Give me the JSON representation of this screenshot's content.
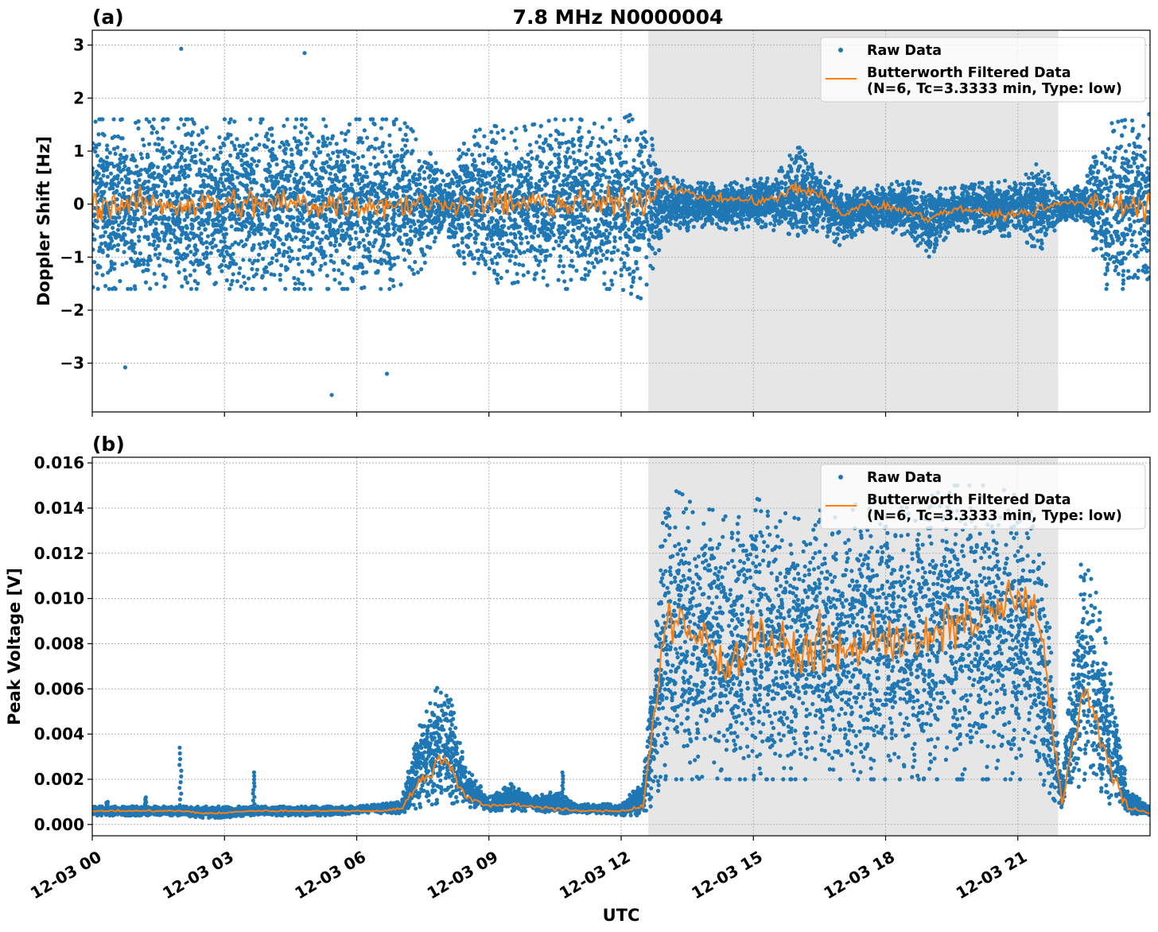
{
  "chart_data": [
    {
      "type": "scatter",
      "panel_label": "(a)",
      "title": "7.8 MHz N0000004",
      "xlabel": "",
      "ylabel": "Doppler Shift [Hz]",
      "ylim": [
        -3.92,
        3.28
      ],
      "xlim": [
        "12-03 00:00",
        "12-04 00:00"
      ],
      "yticks": [
        "−3",
        "−2",
        "−1",
        "0",
        "1",
        "2",
        "3"
      ],
      "ytick_values": [
        -3,
        -2,
        -1,
        0,
        1,
        2,
        3
      ],
      "grid": true,
      "legend_position": "top-right",
      "shaded_interval": [
        "12-03 12:37",
        "12-03 21:55"
      ],
      "shade_color": "#e6e6e6",
      "raw_color": "#1f77b4",
      "filtered_color": "#ff7f0e",
      "legend": [
        "Raw Data",
        "Butterworth Filtered Data",
        "(N=6, Tc=3.3333 min, Type: low)"
      ],
      "time_step_minutes": 30,
      "raw_low": [
        -1.6,
        -1.6,
        -1.6,
        -1.6,
        -1.6,
        -1.6,
        -1.6,
        -1.6,
        -1.6,
        -1.6,
        -1.6,
        -1.6,
        -1.6,
        -1.6,
        -1.6,
        -1.2,
        -0.5,
        -1.2,
        -1.5,
        -1.5,
        -1.4,
        -1.6,
        -1.6,
        -1.6,
        -1.6,
        -1.8,
        -0.5,
        -0.5,
        -0.4,
        -0.5,
        -0.4,
        -0.5,
        -0.6,
        -0.5,
        -0.8,
        -0.5,
        -0.5,
        -0.6,
        -1.0,
        -0.5,
        -0.5,
        -0.6,
        -0.6,
        -0.9,
        -0.3,
        -0.3,
        -1.6,
        -1.6,
        -1.7
      ],
      "raw_high": [
        1.6,
        1.6,
        1.6,
        1.6,
        1.6,
        1.6,
        1.6,
        1.6,
        1.6,
        1.6,
        1.6,
        1.6,
        1.6,
        1.6,
        1.6,
        1.2,
        0.5,
        1.3,
        1.5,
        1.4,
        1.5,
        1.6,
        1.6,
        1.6,
        1.6,
        1.8,
        0.6,
        0.4,
        0.4,
        0.4,
        0.5,
        0.5,
        1.2,
        0.6,
        0.4,
        0.3,
        0.4,
        0.5,
        0.3,
        0.3,
        0.4,
        0.4,
        0.5,
        0.8,
        0.2,
        0.4,
        1.5,
        1.6,
        1.7
      ],
      "filtered": [
        0,
        0,
        0,
        0,
        0,
        0,
        0,
        0,
        0,
        0,
        0,
        0,
        0,
        0,
        0,
        0,
        0,
        0,
        0,
        0,
        0,
        0,
        0,
        0,
        0,
        0.1,
        0.4,
        0.2,
        0.1,
        0.1,
        0.05,
        0.1,
        0.3,
        0.2,
        -0.2,
        0,
        -0.05,
        -0.1,
        -0.3,
        -0.1,
        -0.1,
        -0.2,
        -0.2,
        -0.1,
        0.05,
        0,
        0,
        0,
        0
      ],
      "outliers": [
        [
          "12-03 02:00",
          2.93
        ],
        [
          "12-03 04:50",
          2.85
        ],
        [
          "12-03 00:46",
          -3.08
        ],
        [
          "12-03 05:25",
          -3.6
        ],
        [
          "12-03 06:40",
          -3.2
        ]
      ]
    },
    {
      "type": "scatter",
      "panel_label": "(b)",
      "xlabel": "UTC",
      "ylabel": "Peak Voltage [V]",
      "ylim": [
        -0.0005,
        0.01625
      ],
      "yticks": [
        "0.000",
        "0.002",
        "0.004",
        "0.006",
        "0.008",
        "0.010",
        "0.012",
        "0.014",
        "0.016"
      ],
      "ytick_values": [
        0,
        0.002,
        0.004,
        0.006,
        0.008,
        0.01,
        0.012,
        0.014,
        0.016
      ],
      "xticks": [
        "12-03 00",
        "12-03 03",
        "12-03 06",
        "12-03 09",
        "12-03 12",
        "12-03 15",
        "12-03 18",
        "12-03 21"
      ],
      "grid": true,
      "legend_position": "top-right",
      "legend": [
        "Raw Data",
        "Butterworth Filtered Data",
        "(N=6, Tc=3.3333 min, Type: low)"
      ],
      "time_step_minutes": 30,
      "raw_low": [
        0.0004,
        0.0004,
        0.0004,
        0.0004,
        0.0004,
        0.0003,
        0.0003,
        0.0004,
        0.0004,
        0.0004,
        0.0004,
        0.0004,
        0.0005,
        0.0005,
        0.0005,
        0.0008,
        0.001,
        0.0008,
        0.0006,
        0.0006,
        0.0006,
        0.0005,
        0.0005,
        0.0005,
        0.0004,
        0.0004,
        0.002,
        0.002,
        0.002,
        0.002,
        0.002,
        0.002,
        0.002,
        0.002,
        0.002,
        0.002,
        0.002,
        0.002,
        0.002,
        0.002,
        0.002,
        0.002,
        0.002,
        0.002,
        0.0006,
        0.002,
        0.001,
        0.0005,
        0.0004
      ],
      "raw_high": [
        0.0008,
        0.0008,
        0.0008,
        0.0008,
        0.0008,
        0.0008,
        0.0008,
        0.0008,
        0.0008,
        0.0008,
        0.0008,
        0.0008,
        0.0008,
        0.0009,
        0.001,
        0.005,
        0.0066,
        0.0025,
        0.0012,
        0.0018,
        0.0012,
        0.0015,
        0.0009,
        0.0009,
        0.0009,
        0.002,
        0.015,
        0.0145,
        0.014,
        0.0135,
        0.0145,
        0.014,
        0.0135,
        0.014,
        0.014,
        0.0145,
        0.0145,
        0.014,
        0.0145,
        0.015,
        0.015,
        0.015,
        0.0145,
        0.014,
        0.002,
        0.013,
        0.008,
        0.0015,
        0.0008
      ],
      "filtered": [
        0.0006,
        0.0006,
        0.0006,
        0.0006,
        0.0006,
        0.0005,
        0.0005,
        0.0006,
        0.0006,
        0.0006,
        0.0006,
        0.0006,
        0.0006,
        0.0006,
        0.0007,
        0.002,
        0.003,
        0.0012,
        0.0008,
        0.0009,
        0.0008,
        0.0007,
        0.0006,
        0.0006,
        0.0006,
        0.0008,
        0.009,
        0.0085,
        0.008,
        0.007,
        0.0085,
        0.008,
        0.0075,
        0.008,
        0.0075,
        0.008,
        0.0085,
        0.008,
        0.008,
        0.009,
        0.009,
        0.0095,
        0.01,
        0.009,
        0.001,
        0.006,
        0.003,
        0.0007,
        0.0005
      ],
      "spikes": [
        [
          "12-03 00:20",
          0.001
        ],
        [
          "12-03 01:13",
          0.0012
        ],
        [
          "12-03 02:00",
          0.0034
        ],
        [
          "12-03 03:40",
          0.0023
        ],
        [
          "12-03 10:40",
          0.0023
        ],
        [
          "12-03 12:40",
          0.0052
        ]
      ]
    }
  ]
}
